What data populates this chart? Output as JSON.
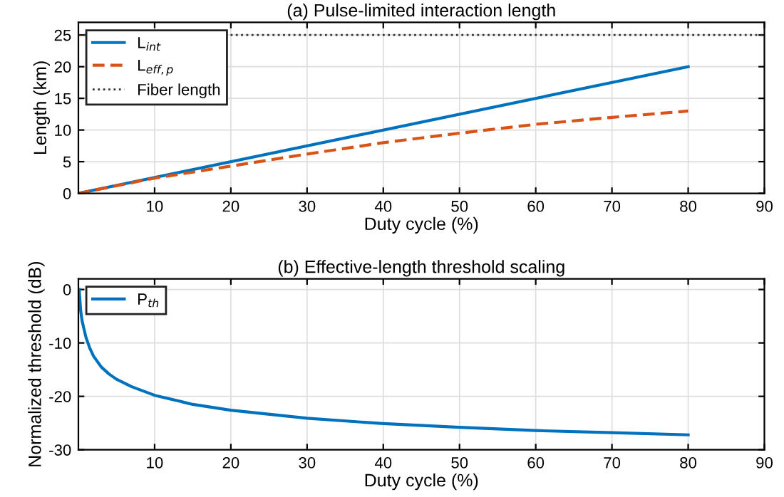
{
  "chart_data": [
    {
      "type": "line",
      "title": "(a) Pulse-limited interaction length",
      "xlabel": "Duty cycle (%)",
      "ylabel": "Length (km)",
      "xlim": [
        0,
        90
      ],
      "xticks": [
        10,
        20,
        30,
        40,
        50,
        60,
        70,
        80,
        90
      ],
      "ylim": [
        0,
        27
      ],
      "yticks": [
        0,
        5,
        10,
        15,
        20,
        25
      ],
      "grid": true,
      "legend": "top left",
      "series": [
        {
          "name": "L$_{int}$",
          "color": "#0072bd",
          "line_style": "solid",
          "x": [
            0,
            80
          ],
          "values": [
            0,
            20
          ]
        },
        {
          "name": "L$_{eff,p}$",
          "color": "#d95319",
          "line_style": "dashed",
          "x": [
            0,
            10,
            20,
            30,
            40,
            50,
            60,
            70,
            80
          ],
          "values": [
            0,
            2.4,
            4.3,
            6.2,
            8.0,
            9.5,
            10.9,
            12.0,
            13.0
          ]
        },
        {
          "name": "Fiber length",
          "color": "#333333",
          "line_style": "dotted",
          "x": [
            0,
            90
          ],
          "values": [
            25,
            25
          ]
        }
      ]
    },
    {
      "type": "line",
      "title": "(b) Effective-length threshold scaling",
      "xlabel": "Duty cycle (%)",
      "ylabel": "Normalized threshold (dB)",
      "xlim": [
        0,
        90
      ],
      "xticks": [
        10,
        20,
        30,
        40,
        50,
        60,
        70,
        80,
        90
      ],
      "ylim": [
        -30,
        2
      ],
      "yticks": [
        -30,
        -20,
        -10,
        0
      ],
      "grid": true,
      "legend": "top left",
      "series": [
        {
          "name": "P$_{th}$",
          "color": "#0072bd",
          "line_style": "solid",
          "x": [
            0.1,
            0.3,
            0.5,
            1,
            1.5,
            2,
            3,
            4,
            5,
            7,
            10,
            15,
            20,
            30,
            40,
            50,
            60,
            70,
            80
          ],
          "values": [
            0,
            -4,
            -6,
            -9,
            -11,
            -12.5,
            -14.5,
            -15.8,
            -16.8,
            -18.2,
            -19.8,
            -21.5,
            -22.6,
            -24.1,
            -25.1,
            -25.8,
            -26.4,
            -26.8,
            -27.2
          ]
        }
      ]
    }
  ]
}
